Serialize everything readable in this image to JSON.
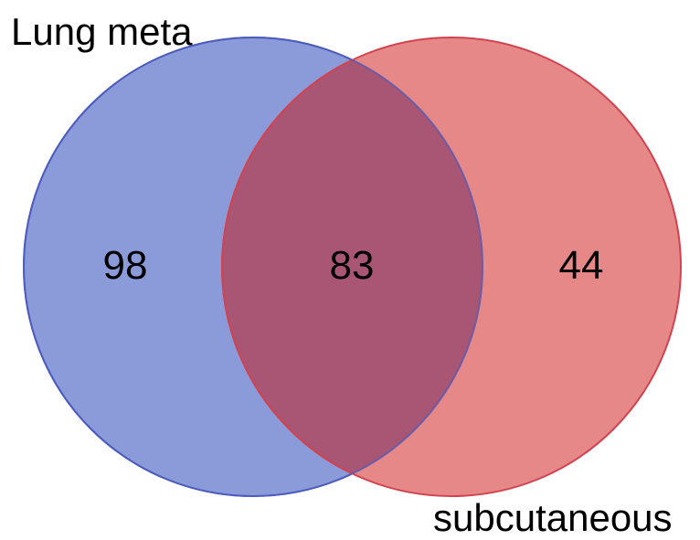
{
  "venn": {
    "sets": [
      {
        "label": "Lung meta",
        "only_count": "98",
        "fill": "#6e82cf",
        "stroke": "#4c5dbd"
      },
      {
        "label": "subcutaneous",
        "only_count": "44",
        "fill": "#e06a6a",
        "stroke": "#d2424f"
      }
    ],
    "intersection_count": "83",
    "intersection_fill": "#a95674"
  }
}
